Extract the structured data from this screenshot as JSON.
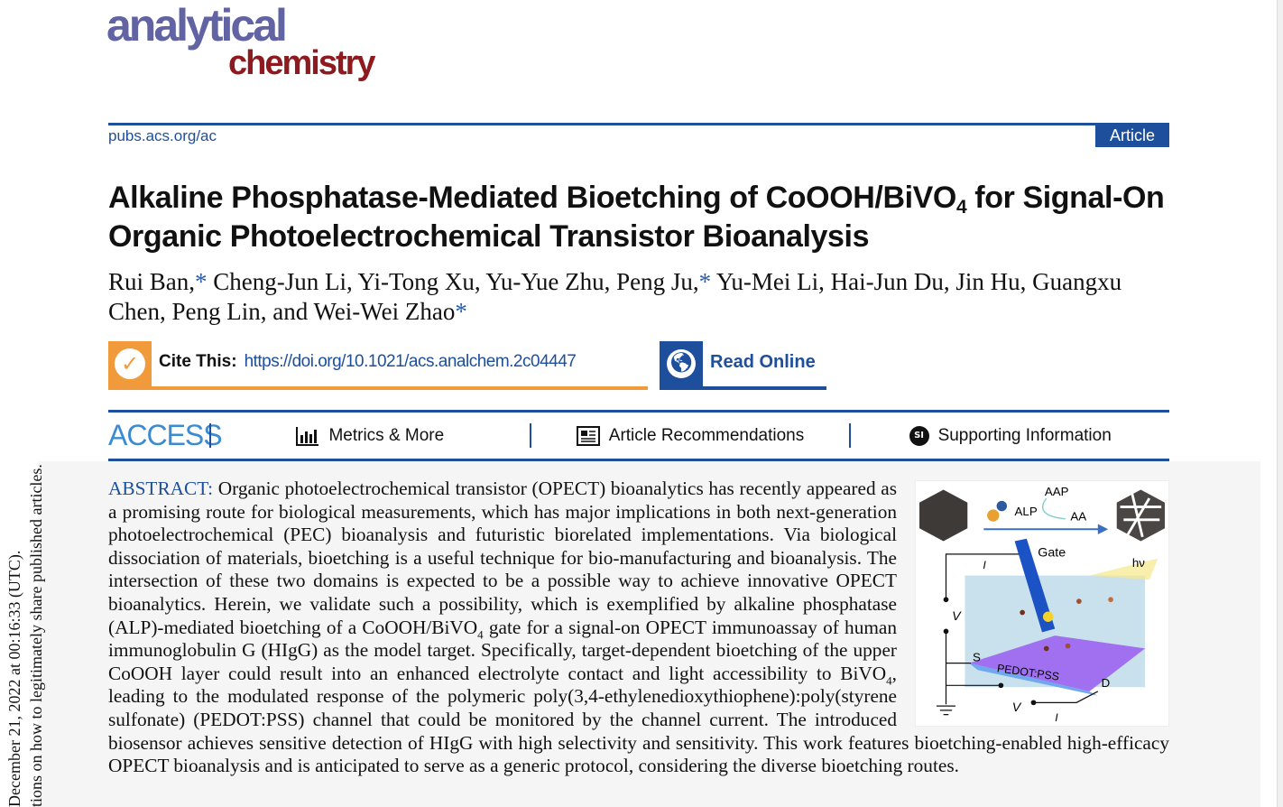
{
  "journal": {
    "logo_line1": "analytical",
    "logo_line2": "chemistry",
    "url": "pubs.acs.org/ac",
    "badge": "Article"
  },
  "article": {
    "title_part1": "Alkaline Phosphatase-Mediated Bioetching of CoOOH/BiVO",
    "title_sub": "4",
    "title_part2": " for Signal-On Organic Photoelectrochemical Transistor Bioanalysis",
    "authors": [
      {
        "name": "Rui Ban,",
        "star": "*"
      },
      {
        "name": "Cheng-Jun Li,"
      },
      {
        "name": "Yi-Tong Xu,"
      },
      {
        "name": "Yu-Yue Zhu,"
      },
      {
        "name": "Peng Ju,",
        "star": "*"
      },
      {
        "name": "Yu-Mei Li,"
      },
      {
        "name": "Hai-Jun Du,"
      },
      {
        "name": "Jin Hu,"
      },
      {
        "name": "Guangxu Chen,"
      },
      {
        "name": "Peng Lin,"
      },
      {
        "name": "and Wei-Wei Zhao",
        "star": "*"
      }
    ]
  },
  "cite": {
    "label": "Cite This:",
    "doi": "https://doi.org/10.1021/acs.analchem.2c04447",
    "icon": "checkmark-icon"
  },
  "read_online": {
    "label": "Read Online",
    "icon": "globe-icon"
  },
  "access": {
    "label": "ACCESS",
    "items": [
      {
        "label": "Metrics & More",
        "icon": "bar-chart-icon"
      },
      {
        "label": "Article Recommendations",
        "icon": "newspaper-icon"
      },
      {
        "label": "Supporting Information",
        "icon": "si-icon",
        "icon_text": "SI"
      }
    ]
  },
  "sidebar": {
    "line1": "December 21, 2022 at 00:16:33 (UTC).",
    "line2": "tions on how to legitimately share published articles."
  },
  "abstract": {
    "heading": "ABSTRACT:",
    "p1": " Organic photoelectrochemical transistor (OPECT) bioanalytics has recently appeared as a promising route for biological measurements, which has major implications in both next-generation photoelectrochemical (PEC) bioanalysis and futuristic biorelated implementations. Via biological dissociation of materials, bioetching is a useful technique for bio-manufacturing and bioanalysis. The intersection of these two domains is expected to be a possible way to achieve innovative OPECT bioanalytics. Herein, we validate such a possibility, which is exemplified by alkaline phosphatase (ALP)-mediated bioetching of a CoOOH/BiVO",
    "sub1": "4",
    "p2": " gate for a signal-on OPECT immunoassay of human immunoglobulin G (HIgG) as the model target. Specifically, target-dependent bioetching of the upper CoOOH layer could result into an enhanced electrolyte contact and light accessibility to BiVO",
    "sub2": "4",
    "p3": ", leading to the modulated response of the polymeric poly(3,4-ethylenedioxythiophene):poly(styrene sulfonate) (PEDOT:PSS) channel that could be monitored by the channel current. The introduced biosensor achieves sensitive detection of HIgG with high selectivity and sensitivity. This work features bioetching-enabled high-efficacy OPECT bioanalysis and is anticipated to serve as a generic protocol, considering the diverse bioetching routes."
  },
  "toc_graphic": {
    "labels": {
      "aap": "AAP",
      "alp": "ALP",
      "aa": "AA",
      "gate": "Gate",
      "hv": "hν",
      "ig": "I",
      "ig_sub": "g",
      "vg": "V",
      "vg_sub": "g",
      "s": "S",
      "channel": "PEDOT:PSS",
      "d": "D",
      "vd": "V",
      "vd_sub": "d",
      "id": "I",
      "id_sub": "d"
    }
  },
  "colors": {
    "brand_blue": "#1d4f9c",
    "cite_orange": "#f09a3b",
    "access_blue": "#3a8bd0",
    "logo_purple": "#6163a3",
    "logo_red": "#8e1a20"
  }
}
